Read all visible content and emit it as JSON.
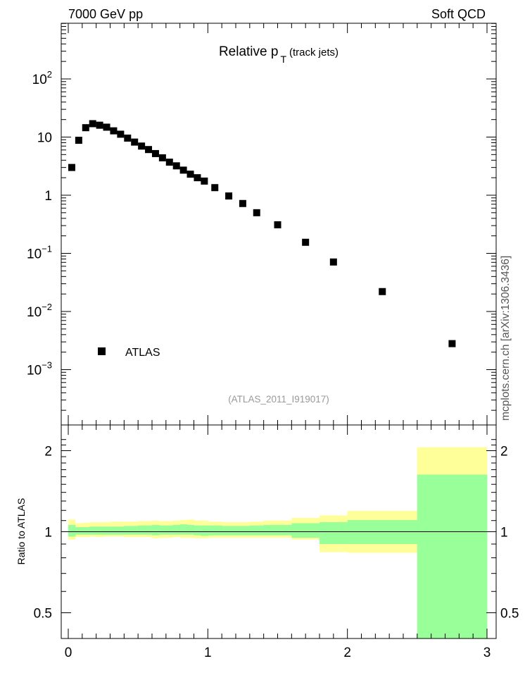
{
  "header": {
    "left": "7000 GeV pp",
    "right": "Soft QCD"
  },
  "side_note": "mcplots.cern.ch [arXiv:1306.3436]",
  "colors": {
    "inner_band": "#99ff99",
    "outer_band": "#ffff99",
    "marker": "#000000"
  },
  "chart_data": [
    {
      "type": "scatter",
      "title_main": "Relative p",
      "title_sub": "T",
      "title_suffix": "(track jets)",
      "analysis_label": "(ATLAS_2011_I919017)",
      "xlim": [
        0,
        3
      ],
      "ylim": [
        0.0002,
        1000
      ],
      "yscale": "log",
      "y_ticks": [
        {
          "value": 100,
          "base": "10",
          "exp": "2"
        },
        {
          "value": 10,
          "base": "10",
          "exp": ""
        },
        {
          "value": 1,
          "base": "1",
          "exp": ""
        },
        {
          "value": 0.1,
          "base": "10",
          "exp": "−1"
        },
        {
          "value": 0.01,
          "base": "10",
          "exp": "−2"
        },
        {
          "value": 0.001,
          "base": "10",
          "exp": "−3"
        }
      ],
      "legend": {
        "entries": [
          "ATLAS"
        ],
        "placement": "bottom-left"
      },
      "series": [
        {
          "name": "ATLAS",
          "x": [
            0.025,
            0.075,
            0.125,
            0.175,
            0.225,
            0.275,
            0.325,
            0.375,
            0.425,
            0.475,
            0.525,
            0.575,
            0.625,
            0.675,
            0.725,
            0.775,
            0.825,
            0.875,
            0.925,
            0.975,
            1.05,
            1.15,
            1.25,
            1.35,
            1.5,
            1.7,
            1.9,
            2.25,
            2.75
          ],
          "y": [
            3.0,
            8.8,
            14.5,
            17.0,
            16.0,
            14.8,
            12.8,
            11.2,
            9.6,
            8.2,
            7.0,
            6.1,
            5.2,
            4.4,
            3.7,
            3.2,
            2.7,
            2.3,
            2.0,
            1.75,
            1.35,
            0.97,
            0.72,
            0.5,
            0.31,
            0.155,
            0.071,
            0.022,
            0.0028
          ]
        }
      ]
    },
    {
      "type": "area",
      "ylabel": "Ratio to ATLAS",
      "xlim": [
        0,
        3
      ],
      "ylim": [
        0.37,
        2.3
      ],
      "x_ticks": [
        "0",
        "1",
        "2",
        "3"
      ],
      "y_ticks": [
        "0.5",
        "1",
        "2"
      ],
      "reference_line": 1,
      "bins": {
        "edges": [
          0,
          0.05,
          0.1,
          0.15,
          0.2,
          0.25,
          0.3,
          0.35,
          0.4,
          0.45,
          0.5,
          0.55,
          0.6,
          0.65,
          0.7,
          0.75,
          0.8,
          0.85,
          0.9,
          0.95,
          1.0,
          1.1,
          1.2,
          1.3,
          1.4,
          1.6,
          1.8,
          2.0,
          2.5,
          3.0
        ],
        "inner_low": [
          0.96,
          0.975,
          0.975,
          0.975,
          0.975,
          0.975,
          0.975,
          0.975,
          0.975,
          0.975,
          0.975,
          0.975,
          0.97,
          0.975,
          0.975,
          0.975,
          0.975,
          0.975,
          0.97,
          0.965,
          0.97,
          0.97,
          0.97,
          0.97,
          0.97,
          0.95,
          0.9,
          0.9,
          0.38
        ],
        "inner_high": [
          1.06,
          1.04,
          1.04,
          1.045,
          1.045,
          1.045,
          1.045,
          1.045,
          1.05,
          1.05,
          1.055,
          1.055,
          1.06,
          1.055,
          1.055,
          1.06,
          1.065,
          1.06,
          1.055,
          1.055,
          1.055,
          1.05,
          1.05,
          1.055,
          1.06,
          1.075,
          1.085,
          1.105,
          1.63
        ],
        "outer_low": [
          0.935,
          0.955,
          0.955,
          0.96,
          0.955,
          0.96,
          0.96,
          0.96,
          0.955,
          0.955,
          0.955,
          0.955,
          0.945,
          0.95,
          0.95,
          0.955,
          0.95,
          0.95,
          0.945,
          0.945,
          0.95,
          0.95,
          0.95,
          0.95,
          0.95,
          0.935,
          0.84,
          0.835,
          0.38
        ],
        "outer_high": [
          1.11,
          1.075,
          1.08,
          1.085,
          1.085,
          1.085,
          1.09,
          1.09,
          1.09,
          1.09,
          1.095,
          1.095,
          1.1,
          1.095,
          1.095,
          1.1,
          1.105,
          1.11,
          1.1,
          1.1,
          1.09,
          1.085,
          1.085,
          1.09,
          1.1,
          1.125,
          1.15,
          1.195,
          2.06
        ]
      }
    }
  ]
}
